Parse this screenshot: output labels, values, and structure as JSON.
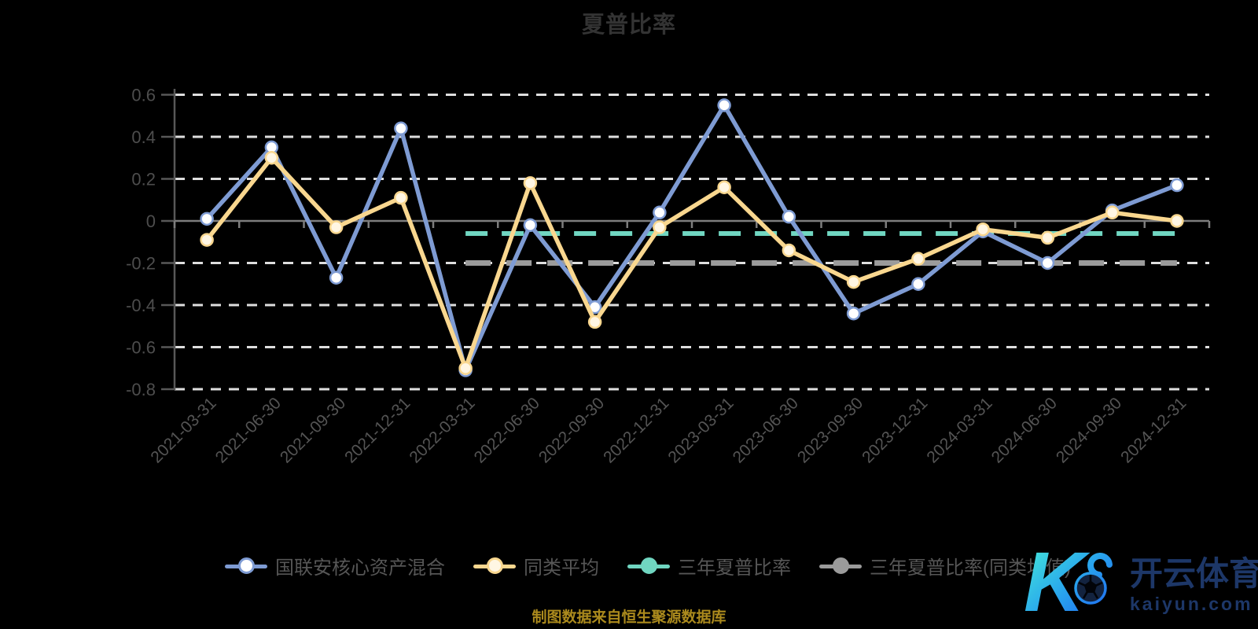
{
  "title": "夏普比率",
  "caption": "制图数据来自恒生聚源数据库",
  "watermark": {
    "brand_cn": "开云体育",
    "brand_url": "kaiyun.com"
  },
  "colors": {
    "background": "#000000",
    "fund_line": "#7e9bd3",
    "peer_line": "#f9d78f",
    "three_year_line": "#70d6c1",
    "three_year_avg_line": "#9b9b9b",
    "gridline": "#dedede",
    "axis_label": "#545454",
    "title_text": "#333333",
    "caption_text": "#ab8a1d"
  },
  "legend": [
    {
      "label": "国联安核心资产混合",
      "color": "#7e9bd3",
      "dot_fill": "#ffffff",
      "dot_border": "#7e9bd3"
    },
    {
      "label": "同类平均",
      "color": "#f9d78f",
      "dot_fill": "#fff6e3",
      "dot_border": "#f9d78f"
    },
    {
      "label": "三年夏普比率",
      "color": "#70d6c1",
      "dot_fill": "#70d6c1",
      "dot_border": "#70d6c1"
    },
    {
      "label": "三年夏普比率(同类均值)",
      "color": "#9b9b9b",
      "dot_fill": "#9b9b9b",
      "dot_border": "#9b9b9b"
    }
  ],
  "chart_data": {
    "type": "line",
    "title": "夏普比率",
    "xlabel": "",
    "ylabel": "",
    "ylim": [
      -0.8,
      0.6
    ],
    "grid": true,
    "legend_position": "bottom",
    "categories": [
      "2021-03-31",
      "2021-06-30",
      "2021-09-30",
      "2021-12-31",
      "2022-03-31",
      "2022-06-30",
      "2022-09-30",
      "2022-12-31",
      "2023-03-31",
      "2023-06-30",
      "2023-09-30",
      "2023-12-31",
      "2024-03-31",
      "2024-06-30",
      "2024-09-30",
      "2024-12-31"
    ],
    "yticks": [
      {
        "v": 0.6,
        "label": "0.6"
      },
      {
        "v": 0.4,
        "label": "0.4"
      },
      {
        "v": 0.2,
        "label": "0.2"
      },
      {
        "v": 0,
        "label": "0"
      },
      {
        "v": -0.2,
        "label": "-0.2"
      },
      {
        "v": -0.4,
        "label": "-0.4"
      },
      {
        "v": -0.6,
        "label": "-0.6"
      },
      {
        "v": -0.8,
        "label": "-0.8"
      }
    ],
    "series": [
      {
        "type": "refline",
        "name": "三年夏普比率",
        "value": -0.06,
        "start_index": 4,
        "color": "#70d6c1",
        "width": 6,
        "dash": "28 18"
      },
      {
        "type": "refline",
        "name": "三年夏普比率(同类均值)",
        "value": -0.2,
        "start_index": 4,
        "color": "#9b9b9b",
        "width": 7,
        "dash": "32 20"
      },
      {
        "type": "line",
        "name": "国联安核心资产混合",
        "color": "#7e9bd3",
        "marker_fill": "#ffffff",
        "values": [
          0.01,
          0.35,
          -0.27,
          0.44,
          -0.71,
          -0.02,
          -0.41,
          0.04,
          0.55,
          0.02,
          -0.44,
          -0.3,
          -0.05,
          -0.2,
          0.05,
          0.17
        ]
      },
      {
        "type": "line",
        "name": "同类平均",
        "color": "#f9d78f",
        "marker_fill": "#fff6e3",
        "values": [
          -0.09,
          0.3,
          -0.03,
          0.11,
          -0.7,
          0.18,
          -0.48,
          -0.03,
          0.16,
          -0.14,
          -0.29,
          -0.18,
          -0.04,
          -0.08,
          0.04,
          0.0
        ]
      }
    ]
  }
}
